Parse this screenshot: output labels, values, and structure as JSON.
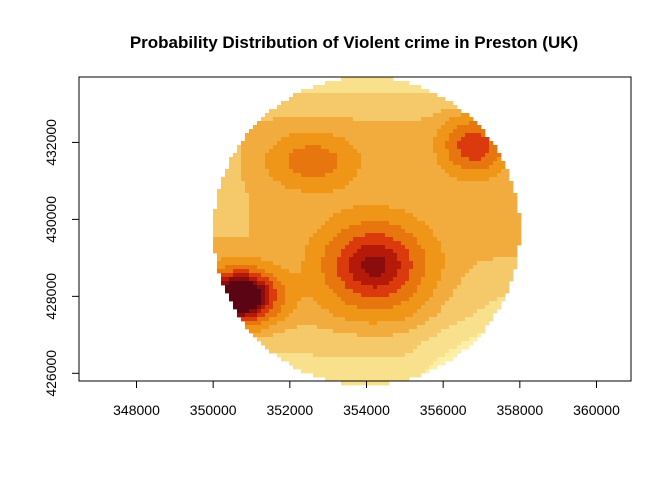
{
  "chart_data": {
    "type": "heatmap",
    "title": "Probability Distribution of Violent crime in Preston (UK)",
    "xlabel": "",
    "ylabel": "",
    "xlim": [
      346500,
      360900
    ],
    "ylim": [
      425800,
      433700
    ],
    "x_ticks": [
      348000,
      350000,
      352000,
      354000,
      356000,
      358000,
      360000
    ],
    "y_ticks": [
      426000,
      428000,
      430000,
      432000
    ],
    "x_tick_labels": [
      "348000",
      "350000",
      "352000",
      "354000",
      "356000",
      "358000",
      "360000"
    ],
    "y_tick_labels": [
      "426000",
      "428000",
      "430000",
      "432000"
    ],
    "grid": false,
    "legend": "none",
    "colormap": "heat (dark red to pale yellow, 10 levels)",
    "palette": [
      "#ffffc8",
      "#fcefa6",
      "#f9e08d",
      "#f5c96a",
      "#f2ac3d",
      "#ef9618",
      "#e7760f",
      "#db3a0d",
      "#b51a08",
      "#8a0c0c",
      "#5a0414"
    ],
    "region": {
      "shape": "circle",
      "center": [
        354000,
        429700
      ],
      "radius": 4000
    },
    "hotspots": [
      {
        "x": 350700,
        "y": 428000,
        "intensity": 1.0
      },
      {
        "x": 354200,
        "y": 428800,
        "intensity": 0.7
      },
      {
        "x": 356800,
        "y": 431900,
        "intensity": 0.55
      },
      {
        "x": 352600,
        "y": 431500,
        "intensity": 0.4
      }
    ]
  }
}
